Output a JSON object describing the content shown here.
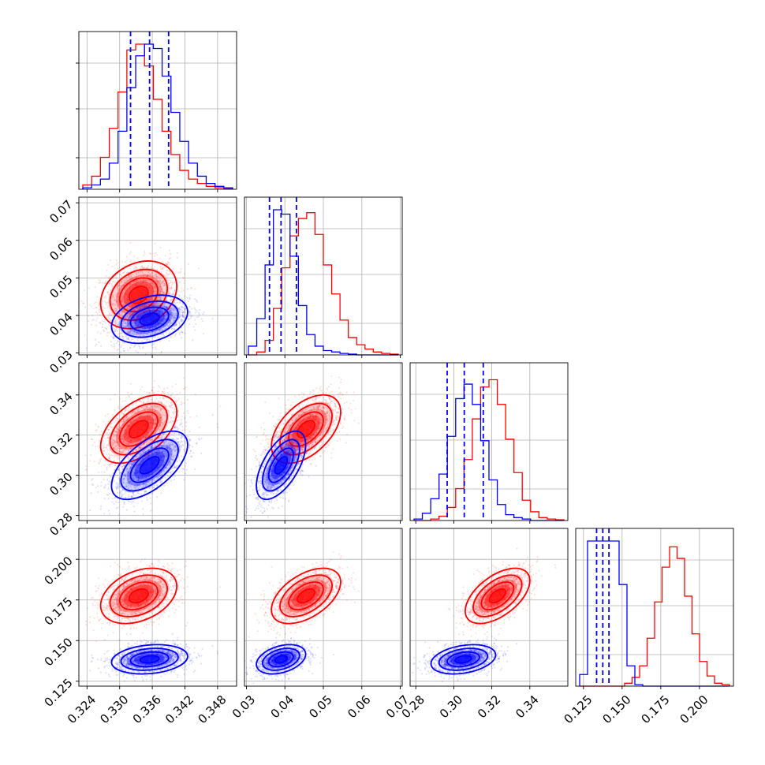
{
  "chart_data": {
    "type": "corner",
    "series": [
      {
        "name": "",
        "color": "#0000ff",
        "means": [
          0.3355,
          0.039,
          0.305,
          0.1385
        ],
        "sigmas": [
          0.0035,
          0.0032,
          0.0085,
          0.0045
        ],
        "correlations": [
          [
            1,
            0.3,
            0.6,
            0.2
          ],
          [
            0.3,
            1,
            0.6,
            0.35
          ],
          [
            0.6,
            0.6,
            1,
            0.3
          ],
          [
            0.2,
            0.35,
            0.3,
            1
          ]
        ],
        "quantile_lines": [
          [
            0.332,
            0.3355,
            0.339
          ],
          [
            0.036,
            0.039,
            0.043
          ],
          [
            0.2965,
            0.3055,
            0.3155
          ],
          [
            0.1335,
            0.1375,
            0.1415
          ]
        ]
      },
      {
        "name": "",
        "color": "#ff0000",
        "means": [
          0.3335,
          0.0455,
          0.323,
          0.1775
        ],
        "sigmas": [
          0.0035,
          0.0045,
          0.0085,
          0.0085
        ],
        "correlations": [
          [
            1,
            0.25,
            0.5,
            0.35
          ],
          [
            0.25,
            1,
            0.5,
            0.5
          ],
          [
            0.5,
            0.5,
            1,
            0.55
          ],
          [
            0.35,
            0.5,
            0.55,
            1
          ]
        ]
      }
    ],
    "axes": [
      {
        "range": [
          0.3225,
          0.3515
        ],
        "ticks": [
          "0.324",
          "0.330",
          "0.336",
          "0.342",
          "0.348"
        ],
        "tick_values": [
          0.324,
          0.33,
          0.336,
          0.342,
          0.348
        ]
      },
      {
        "range": [
          0.0295,
          0.0705
        ],
        "ticks": [
          "0.03",
          "0.04",
          "0.05",
          "0.06",
          "0.07"
        ],
        "tick_values": [
          0.03,
          0.04,
          0.05,
          0.06,
          0.07
        ]
      },
      {
        "range": [
          0.277,
          0.36
        ],
        "ticks": [
          "0.28",
          "0.30",
          "0.32",
          "0.34"
        ],
        "tick_values": [
          0.28,
          0.3,
          0.32,
          0.34
        ]
      },
      {
        "range": [
          0.12,
          0.222
        ],
        "ticks": [
          "0.125",
          "0.150",
          "0.175",
          "0.200"
        ],
        "tick_values": [
          0.125,
          0.15,
          0.175,
          0.2
        ]
      }
    ],
    "y_axes": [
      null,
      {
        "range": [
          0.0295,
          0.0715
        ],
        "ticks": [
          "0.03",
          "0.04",
          "0.05",
          "0.06",
          "0.07"
        ],
        "tick_values": [
          0.03,
          0.04,
          0.05,
          0.06,
          0.07
        ]
      },
      {
        "range": [
          0.2775,
          0.356
        ],
        "ticks": [
          "0.28",
          "0.30",
          "0.32",
          "0.34"
        ],
        "tick_values": [
          0.28,
          0.3,
          0.32,
          0.34
        ]
      },
      {
        "range": [
          0.122,
          0.219
        ],
        "ticks": [
          "0.125",
          "0.150",
          "0.175",
          "0.200"
        ],
        "tick_values": [
          0.125,
          0.15,
          0.175,
          0.2
        ]
      }
    ],
    "histograms": [
      {
        "blue": [
          0.01,
          0.03,
          0.07,
          0.18,
          0.4,
          0.7,
          0.92,
          1.0,
          0.97,
          0.78,
          0.53,
          0.33,
          0.18,
          0.09,
          0.04,
          0.02,
          0.01
        ],
        "red": [
          0.03,
          0.09,
          0.22,
          0.42,
          0.67,
          0.96,
          1.0,
          0.85,
          0.62,
          0.4,
          0.24,
          0.13,
          0.07,
          0.04,
          0.02,
          0.01,
          0.005
        ]
      },
      {
        "blue": [
          0.06,
          0.25,
          0.62,
          1.0,
          0.97,
          0.68,
          0.34,
          0.14,
          0.06,
          0.03,
          0.02,
          0.01,
          0.005,
          0.0,
          0.0,
          0.0,
          0.0,
          0.0
        ],
        "red": [
          0.0,
          0.02,
          0.1,
          0.32,
          0.6,
          0.82,
          0.94,
          0.98,
          0.83,
          0.62,
          0.42,
          0.24,
          0.12,
          0.07,
          0.04,
          0.02,
          0.01,
          0.005
        ]
      },
      {
        "blue": [
          0.01,
          0.05,
          0.15,
          0.32,
          0.58,
          0.84,
          0.94,
          0.8,
          0.55,
          0.28,
          0.11,
          0.04,
          0.02,
          0.01,
          0.0,
          0.0,
          0.0,
          0.0
        ],
        "red": [
          0.0,
          0.0,
          0.01,
          0.03,
          0.09,
          0.22,
          0.42,
          0.7,
          0.92,
          0.97,
          0.8,
          0.56,
          0.33,
          0.14,
          0.06,
          0.02,
          0.01,
          0.005
        ]
      },
      {
        "blue": [
          0.08,
          1.0,
          1.0,
          1.0,
          1.0,
          0.7,
          0.14,
          0.01,
          0.0,
          0.0,
          0.0,
          0.0,
          0.0,
          0.0,
          0.0,
          0.0,
          0.0,
          0.0,
          0.0
        ],
        "red": [
          0.0,
          0.0,
          0.0,
          0.0,
          0.0,
          0.0,
          0.02,
          0.06,
          0.14,
          0.33,
          0.58,
          0.82,
          0.96,
          0.88,
          0.62,
          0.36,
          0.17,
          0.07,
          0.02,
          0.01
        ]
      }
    ],
    "grid": true,
    "contour_levels": [
      0.5,
      1.0,
      1.5,
      2.0
    ]
  }
}
